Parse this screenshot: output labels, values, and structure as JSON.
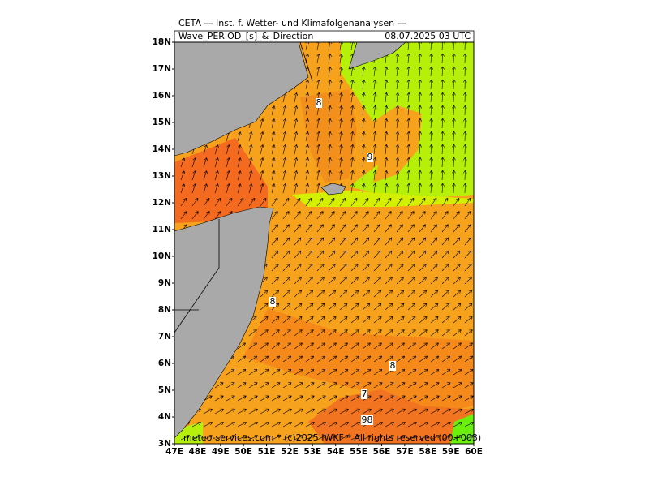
{
  "header": {
    "title": "CETA — Inst. f. Wetter- und Klimafolgenanalysen —",
    "parameter": "Wave_PERIOD_[s]_&_Direction",
    "valid_time": "08.07.2025 03 UTC"
  },
  "map": {
    "lat_labels": [
      "3N",
      "4N",
      "5N",
      "6N",
      "7N",
      "8N",
      "9N",
      "10N",
      "11N",
      "12N",
      "13N",
      "14N",
      "15N",
      "16N",
      "17N",
      "18N"
    ],
    "lon_labels": [
      "47E",
      "48E",
      "49E",
      "50E",
      "51E",
      "52E",
      "53E",
      "54E",
      "55E",
      "56E",
      "57E",
      "58E",
      "59E",
      "60E"
    ],
    "contour_labels": [
      "8",
      "9",
      "8",
      "8",
      "7",
      "9",
      "8"
    ],
    "footer": "meteo-services.com * (c)2025 IWKF * All rights reserved (00+003)"
  }
}
